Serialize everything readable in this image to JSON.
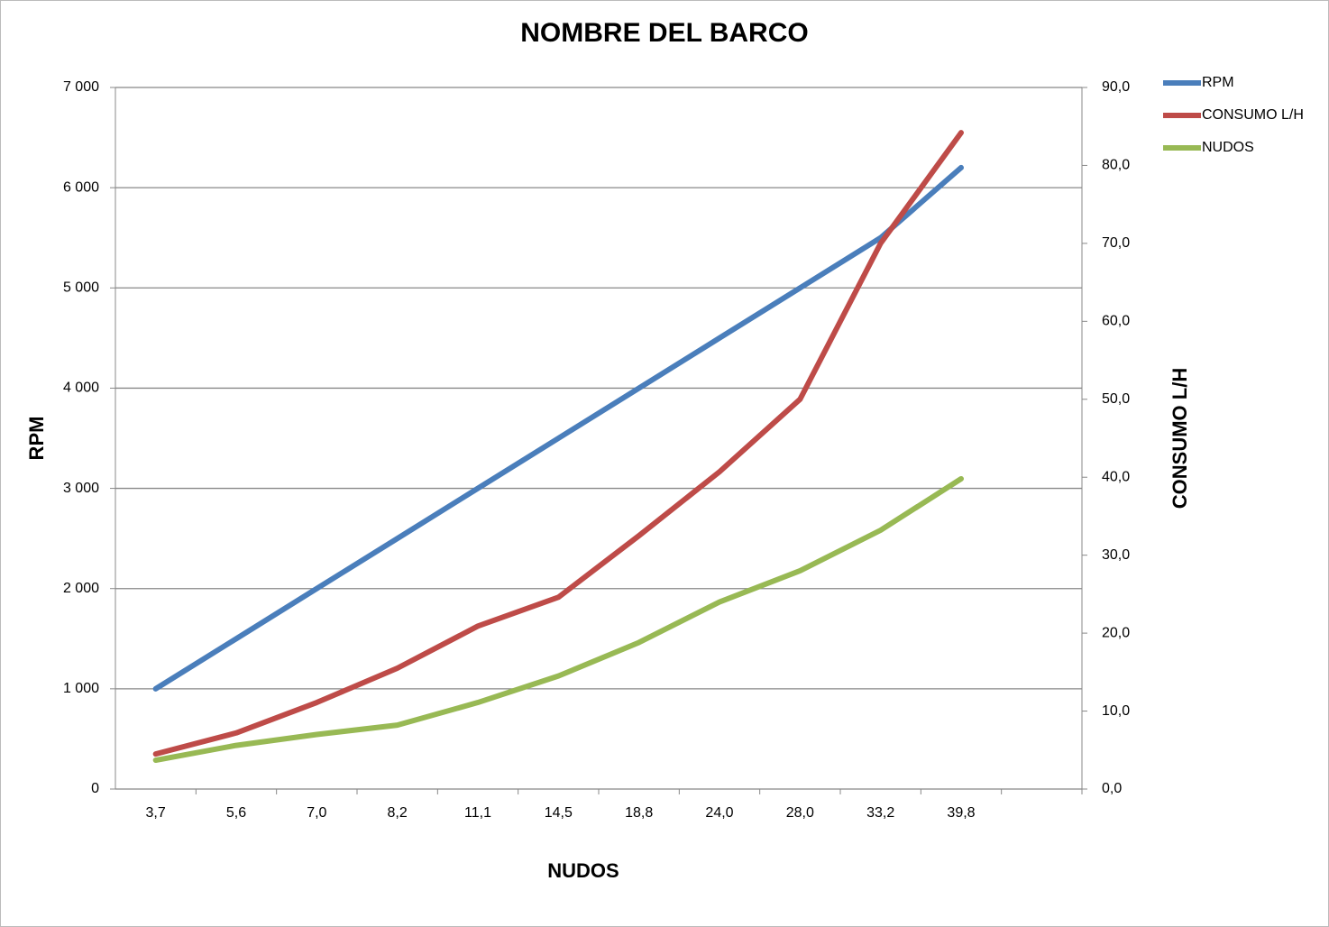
{
  "chart_data": {
    "type": "line",
    "title": "NOMBRE DEL BARCO",
    "x_label": "NUDOS",
    "y_label": "RPM",
    "y2_label": "CONSUMO L/H",
    "categories": [
      "3,7",
      "5,6",
      "7,0",
      "8,2",
      "11,1",
      "14,5",
      "18,8",
      "24,0",
      "28,0",
      "33,2",
      "39,8",
      null
    ],
    "series": [
      {
        "name": "RPM",
        "color": "#4a7ebb",
        "values": [
          1000,
          1500,
          2000,
          2500,
          3000,
          3500,
          4000,
          4500,
          5000,
          5500,
          6200,
          null
        ]
      },
      {
        "name": "CONSUMO L/H",
        "color": "#be4b48",
        "axis": "y2",
        "values": [
          4.5,
          7.2,
          11.1,
          15.5,
          20.9,
          24.6,
          32.5,
          40.7,
          50,
          70,
          84.2,
          null
        ]
      },
      {
        "name": "NUDOS",
        "color": "#98b954",
        "axis": "y2",
        "values": [
          3.7,
          5.6,
          7.0,
          8.2,
          11.1,
          14.5,
          18.8,
          24.0,
          28.0,
          33.2,
          39.8,
          null
        ]
      }
    ],
    "ylim": [
      0,
      7000
    ],
    "yticks": [
      0,
      {
        "value": 1000,
        "label": "1 000"
      },
      {
        "value": 2000,
        "label": "2 000"
      },
      {
        "value": 3000,
        "label": "3 000"
      },
      {
        "value": 4000,
        "label": "4 000"
      },
      {
        "value": 5000,
        "label": "5 000"
      },
      {
        "value": 6000,
        "label": "6 000"
      },
      {
        "value": 7000,
        "label": "7 000"
      }
    ],
    "y2lim": [
      0,
      90
    ],
    "y2ticks": [
      {
        "value": 0,
        "label": "0,0"
      },
      {
        "value": 10,
        "label": "10,0"
      },
      {
        "value": 20,
        "label": "20,0"
      },
      {
        "value": 30,
        "label": "30,0"
      },
      {
        "value": 40,
        "label": "40,0"
      },
      {
        "value": 50,
        "label": "50,0"
      },
      {
        "value": 60,
        "label": "60,0"
      },
      {
        "value": 70,
        "label": "70,0"
      },
      {
        "value": 80,
        "label": "80,0"
      },
      {
        "value": 90,
        "label": "90,0"
      }
    ],
    "grid": true,
    "legend": "top-right"
  }
}
